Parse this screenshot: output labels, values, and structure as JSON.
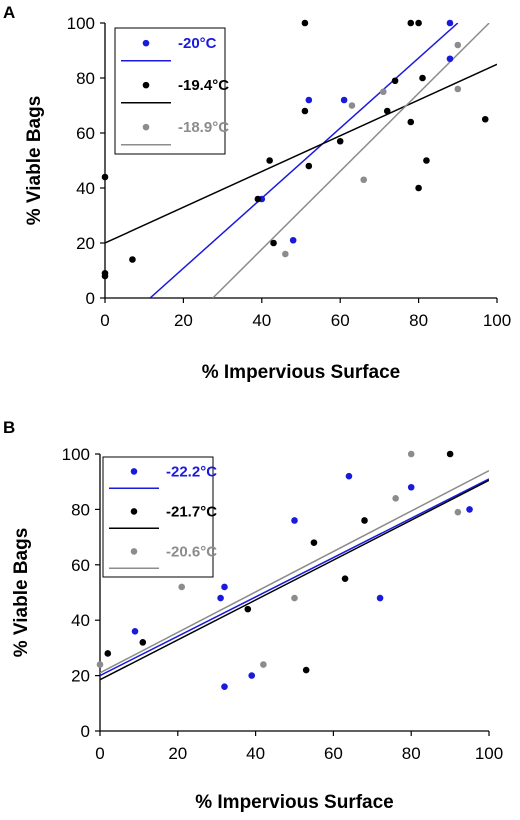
{
  "chart_data": [
    {
      "panel": "A",
      "type": "scatter",
      "title": "",
      "xlabel": "% Impervious Surface",
      "ylabel": "% Viable Bags",
      "xlim": [
        0,
        100
      ],
      "ylim": [
        0,
        100
      ],
      "xticks": [
        "0",
        "20",
        "40",
        "60",
        "80",
        "100"
      ],
      "yticks": [
        "0",
        "20",
        "40",
        "60",
        "80",
        "100"
      ],
      "grid": false,
      "legend_position": "top-left",
      "series": [
        {
          "name": "-20°C",
          "color": "#1a1adc",
          "points": [
            [
              40,
              36
            ],
            [
              48,
              21
            ],
            [
              52,
              72
            ],
            [
              61,
              72
            ],
            [
              88,
              87
            ],
            [
              88,
              100
            ]
          ],
          "trend": [
            [
              11.5,
              0
            ],
            [
              90,
              100
            ]
          ]
        },
        {
          "name": "-19.4°C",
          "color": "#000000",
          "points": [
            [
              0,
              44
            ],
            [
              0,
              9
            ],
            [
              0,
              8
            ],
            [
              7,
              14
            ],
            [
              39,
              36
            ],
            [
              42,
              50
            ],
            [
              43,
              20
            ],
            [
              51,
              68
            ],
            [
              51,
              100
            ],
            [
              52,
              48
            ],
            [
              60,
              57
            ],
            [
              72,
              68
            ],
            [
              74,
              79
            ],
            [
              78,
              64
            ],
            [
              78,
              100
            ],
            [
              80,
              100
            ],
            [
              80,
              40
            ],
            [
              81,
              80
            ],
            [
              82,
              50
            ],
            [
              97,
              65
            ]
          ],
          "trend": [
            [
              0,
              20
            ],
            [
              100,
              85
            ]
          ]
        },
        {
          "name": "-18.9°C",
          "color": "#8c8c8c",
          "points": [
            [
              46,
              16
            ],
            [
              63,
              70
            ],
            [
              66,
              43
            ],
            [
              71,
              75
            ],
            [
              90,
              92
            ],
            [
              90,
              76
            ]
          ],
          "trend": [
            [
              27.5,
              0
            ],
            [
              98,
              100
            ]
          ]
        }
      ]
    },
    {
      "panel": "B",
      "type": "scatter",
      "title": "",
      "xlabel": "% Impervious Surface",
      "ylabel": "% Viable Bags",
      "xlim": [
        0,
        100
      ],
      "ylim": [
        0,
        100
      ],
      "xticks": [
        "0",
        "20",
        "40",
        "60",
        "80",
        "100"
      ],
      "yticks": [
        "0",
        "20",
        "40",
        "60",
        "80",
        "100"
      ],
      "grid": false,
      "legend_position": "top-left",
      "series": [
        {
          "name": "-22.2°C",
          "color": "#1a1adc",
          "points": [
            [
              9,
              36
            ],
            [
              31,
              48
            ],
            [
              32,
              52
            ],
            [
              32,
              16
            ],
            [
              39,
              20
            ],
            [
              50,
              76
            ],
            [
              64,
              92
            ],
            [
              72,
              48
            ],
            [
              80,
              88
            ],
            [
              95,
              80
            ]
          ],
          "trend": [
            [
              0,
              20
            ],
            [
              100,
              91
            ]
          ]
        },
        {
          "name": "-21.7°C",
          "color": "#000000",
          "points": [
            [
              2,
              28
            ],
            [
              11,
              32
            ],
            [
              38,
              44
            ],
            [
              53,
              22
            ],
            [
              55,
              68
            ],
            [
              63,
              55
            ],
            [
              68,
              76
            ],
            [
              90,
              100
            ]
          ],
          "trend": [
            [
              0,
              18.5
            ],
            [
              100,
              90.5
            ]
          ]
        },
        {
          "name": "-20.6°C",
          "color": "#8c8c8c",
          "points": [
            [
              0,
              24
            ],
            [
              21,
              52
            ],
            [
              42,
              24
            ],
            [
              50,
              48
            ],
            [
              76,
              84
            ],
            [
              80,
              100
            ],
            [
              92,
              79
            ]
          ],
          "trend": [
            [
              0,
              21
            ],
            [
              100,
              94
            ]
          ]
        }
      ]
    }
  ]
}
